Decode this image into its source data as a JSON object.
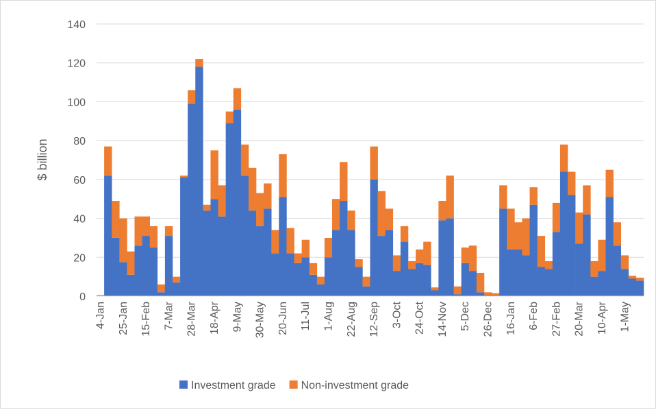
{
  "chart_data": {
    "type": "stacked_bar",
    "y_label": "$ billion",
    "categories": [
      "4-Jan",
      null,
      null,
      "25-Jan",
      null,
      null,
      "15-Feb",
      null,
      null,
      "7-Mar",
      null,
      null,
      "28-Mar",
      null,
      null,
      "18-Apr",
      null,
      null,
      "9-May",
      null,
      null,
      "30-May",
      null,
      null,
      "20-Jun",
      null,
      null,
      "11-Jul",
      null,
      null,
      "1-Aug",
      null,
      null,
      "22-Aug",
      null,
      null,
      "12-Sep",
      null,
      null,
      "3-Oct",
      null,
      null,
      "24-Oct",
      null,
      null,
      "14-Nov",
      null,
      null,
      "5-Dec",
      null,
      null,
      "26-Dec",
      null,
      null,
      "16-Jan",
      null,
      null,
      "6-Feb",
      null,
      null,
      "27-Feb",
      null,
      null,
      "20-Mar",
      null,
      null,
      "10-Apr",
      null,
      null,
      "1-May",
      null,
      null
    ],
    "series": [
      {
        "name": "Investment grade",
        "color": "#4472c4",
        "values": [
          0.3,
          62,
          30,
          17.5,
          11,
          26,
          31,
          25,
          2,
          31,
          7,
          61,
          99,
          118,
          44,
          50,
          41,
          89,
          96,
          62,
          44,
          36,
          45,
          22,
          51,
          22,
          17,
          20,
          11,
          6,
          20,
          34,
          49,
          34,
          15,
          5,
          60,
          31,
          34,
          13,
          28,
          14,
          17,
          16,
          3,
          39,
          40,
          1,
          17,
          13,
          2,
          0.5,
          0.5,
          45,
          24,
          24,
          21,
          47,
          15,
          14,
          33,
          64,
          52,
          27,
          42,
          10,
          13,
          51,
          26,
          14,
          9,
          8
        ]
      },
      {
        "name": "Non-investment grade",
        "color": "#ed7d31",
        "values": [
          0.3,
          15,
          19,
          22.5,
          12,
          15,
          10,
          11,
          4,
          5,
          3,
          1,
          7,
          4,
          3,
          25,
          16,
          6,
          11,
          16,
          22,
          17,
          13,
          12,
          22,
          13,
          5,
          9,
          6,
          4,
          10,
          16,
          20,
          10,
          4,
          5,
          17,
          23,
          11,
          8,
          8,
          4,
          7,
          12,
          1.5,
          10,
          22,
          4,
          8,
          13,
          10,
          1.5,
          1,
          12,
          21,
          14,
          19,
          9,
          16,
          4,
          15,
          14,
          12,
          16,
          15,
          8,
          16,
          14,
          12,
          7,
          1.5,
          1.5
        ]
      }
    ],
    "ylim": [
      0,
      140
    ],
    "yticks": [
      0,
      20,
      40,
      60,
      80,
      100,
      120,
      140
    ],
    "grid": true,
    "legend": "bottom"
  }
}
